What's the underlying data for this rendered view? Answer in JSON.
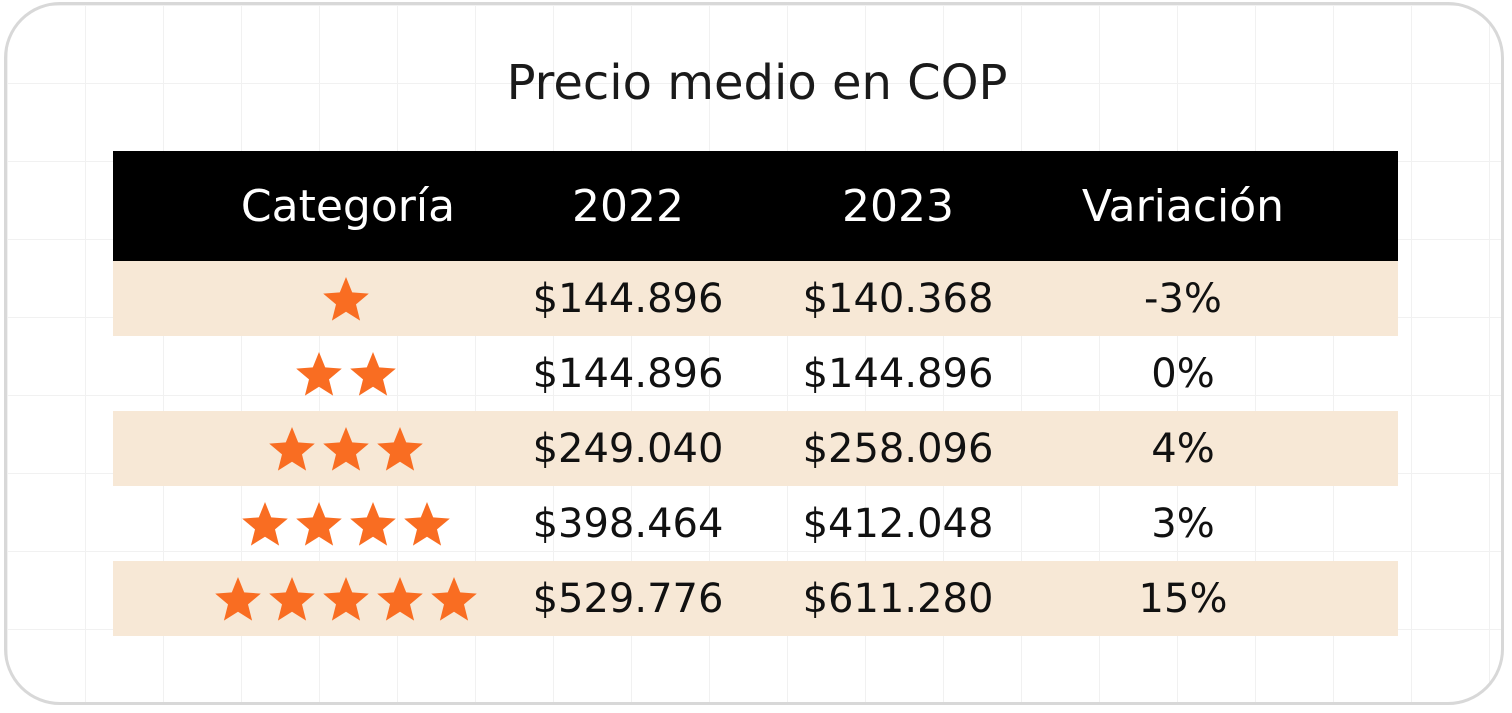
{
  "title": "Precio medio en COP",
  "star_color": "#f96d22",
  "chart_data": {
    "type": "table",
    "title": "Precio medio en COP",
    "columns": [
      "Categoría",
      "2022",
      "2023",
      "Variación"
    ],
    "rows": [
      {
        "stars": 1,
        "y2022": "$144.896",
        "y2023": "$140.368",
        "variation": "-3%"
      },
      {
        "stars": 2,
        "y2022": "$144.896",
        "y2023": "$144.896",
        "variation": "0%"
      },
      {
        "stars": 3,
        "y2022": "$249.040",
        "y2023": "$258.096",
        "variation": "4%"
      },
      {
        "stars": 4,
        "y2022": "$398.464",
        "y2023": "$412.048",
        "variation": "3%"
      },
      {
        "stars": 5,
        "y2022": "$529.776",
        "y2023": "$611.280",
        "variation": "15%"
      }
    ]
  }
}
